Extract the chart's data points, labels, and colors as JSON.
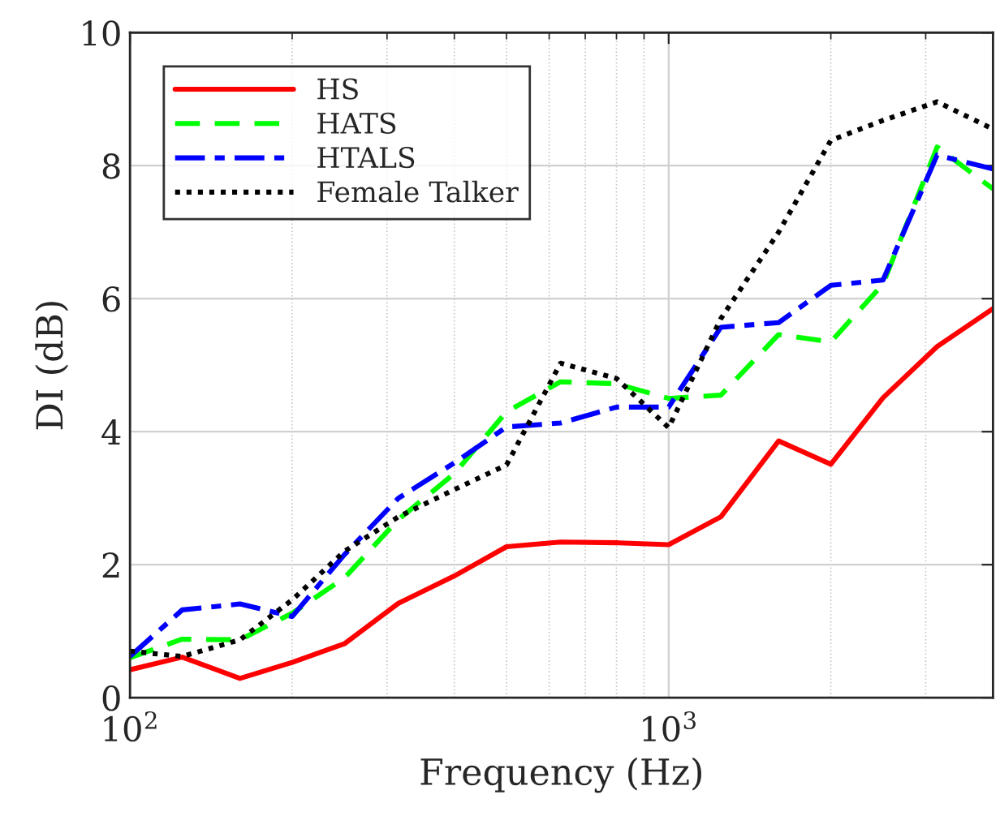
{
  "chart_data": {
    "type": "line",
    "xlabel": "Frequency (Hz)",
    "ylabel": "DI (dB)",
    "log": "x",
    "x": [
      100,
      125,
      160,
      200,
      250,
      315,
      400,
      500,
      630,
      800,
      1000,
      1250,
      1600,
      2000,
      2500,
      3150,
      4000
    ],
    "xlim": [
      100,
      4000
    ],
    "xticks": [
      {
        "value": 100,
        "label": "10$^{2}$"
      },
      {
        "value": 1000,
        "label": "10$^{3}$"
      }
    ],
    "ylim": [
      0,
      10
    ],
    "yticks": [
      0,
      2,
      4,
      6,
      8,
      10
    ],
    "grid": true,
    "legend": "top left",
    "series": [
      {
        "name": "HS",
        "color": "#ff0000",
        "line_style": "solid",
        "values": [
          0.42,
          0.61,
          0.29,
          0.53,
          0.81,
          1.42,
          1.83,
          2.27,
          2.34,
          2.33,
          2.3,
          2.72,
          3.86,
          3.51,
          4.51,
          5.28,
          5.85
        ]
      },
      {
        "name": "HATS",
        "color": "#00ff00",
        "line_style": "dashed",
        "values": [
          0.6,
          0.88,
          0.87,
          1.27,
          1.8,
          2.68,
          3.37,
          4.3,
          4.75,
          4.72,
          4.5,
          4.55,
          5.46,
          5.35,
          6.22,
          8.28,
          7.65
        ]
      },
      {
        "name": "HTALS",
        "color": "#0000ff",
        "line_style": "dashdot",
        "values": [
          0.62,
          1.32,
          1.41,
          1.22,
          2.15,
          3.0,
          3.53,
          4.07,
          4.13,
          4.37,
          4.37,
          5.57,
          5.64,
          6.2,
          6.28,
          8.16,
          7.95
        ]
      },
      {
        "name": "Female Talker",
        "color": "#000000",
        "line_style": "dotted",
        "values": [
          0.7,
          0.62,
          0.87,
          1.47,
          2.2,
          2.72,
          3.13,
          3.5,
          5.03,
          4.8,
          4.06,
          5.7,
          7.0,
          8.38,
          8.68,
          8.96,
          8.55
        ]
      }
    ]
  }
}
